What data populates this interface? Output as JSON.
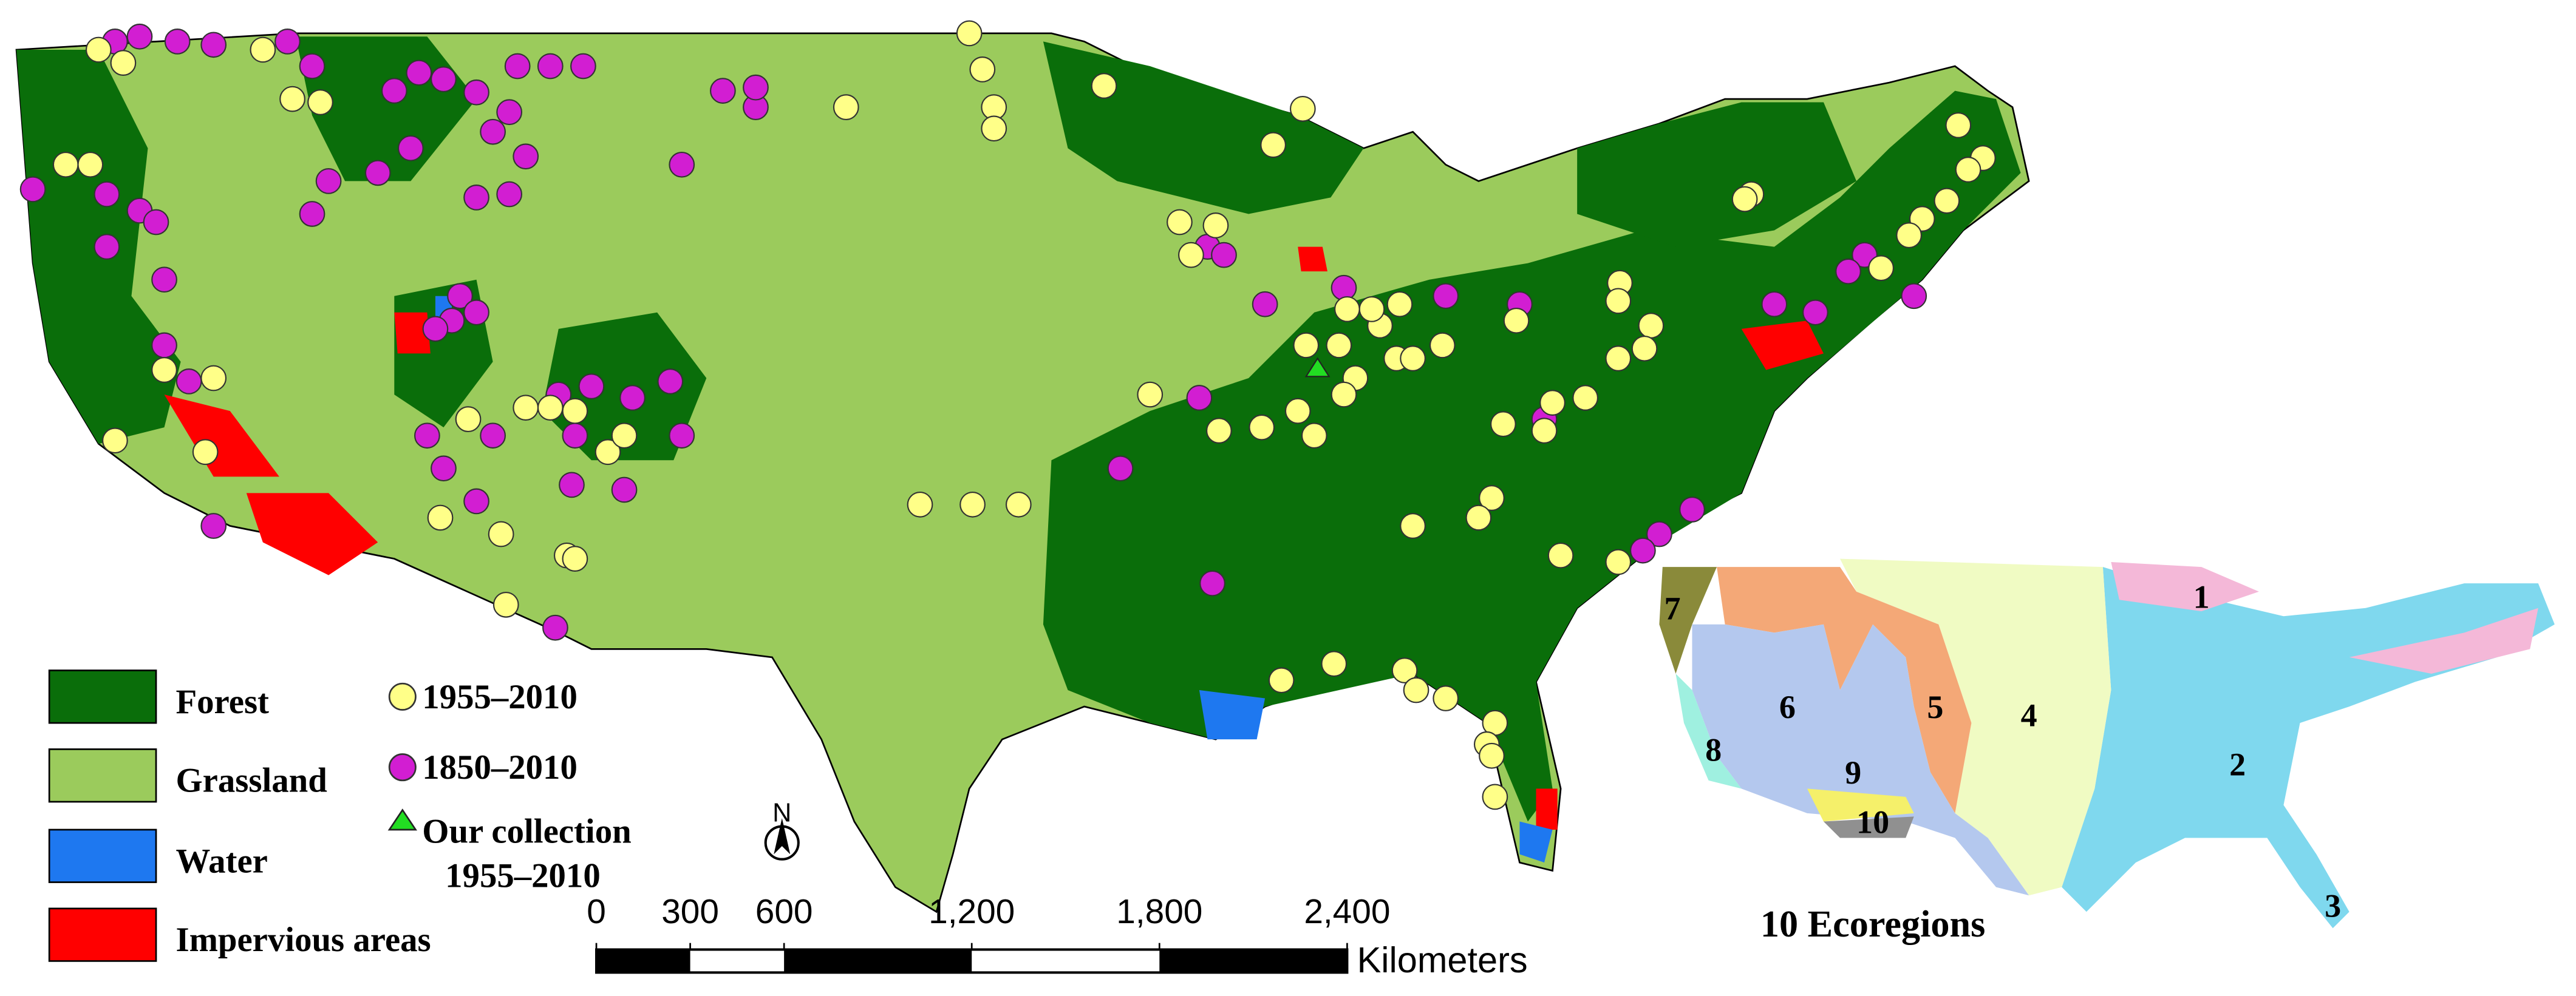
{
  "legend": {
    "land_cover": [
      "Forest",
      "Grassland",
      "Water",
      "Impervious areas"
    ],
    "samples": [
      "1955–2010",
      "1850–2010"
    ],
    "our_collection": {
      "label": "Our collection",
      "period": "1955–2010"
    }
  },
  "north_arrow": "N",
  "scale_bar": {
    "ticks": [
      0,
      300,
      600,
      {
        "value": 1200,
        "label": "1,200"
      },
      {
        "value": 1800,
        "label": "1,800"
      },
      {
        "value": 2400,
        "label": "2,400"
      }
    ],
    "unit": "Kilometers"
  },
  "inset": {
    "title": "10 Ecoregions",
    "labels": [
      "1",
      "2",
      "3",
      "4",
      "5",
      "6",
      "7",
      "8",
      "9",
      "10"
    ]
  }
}
